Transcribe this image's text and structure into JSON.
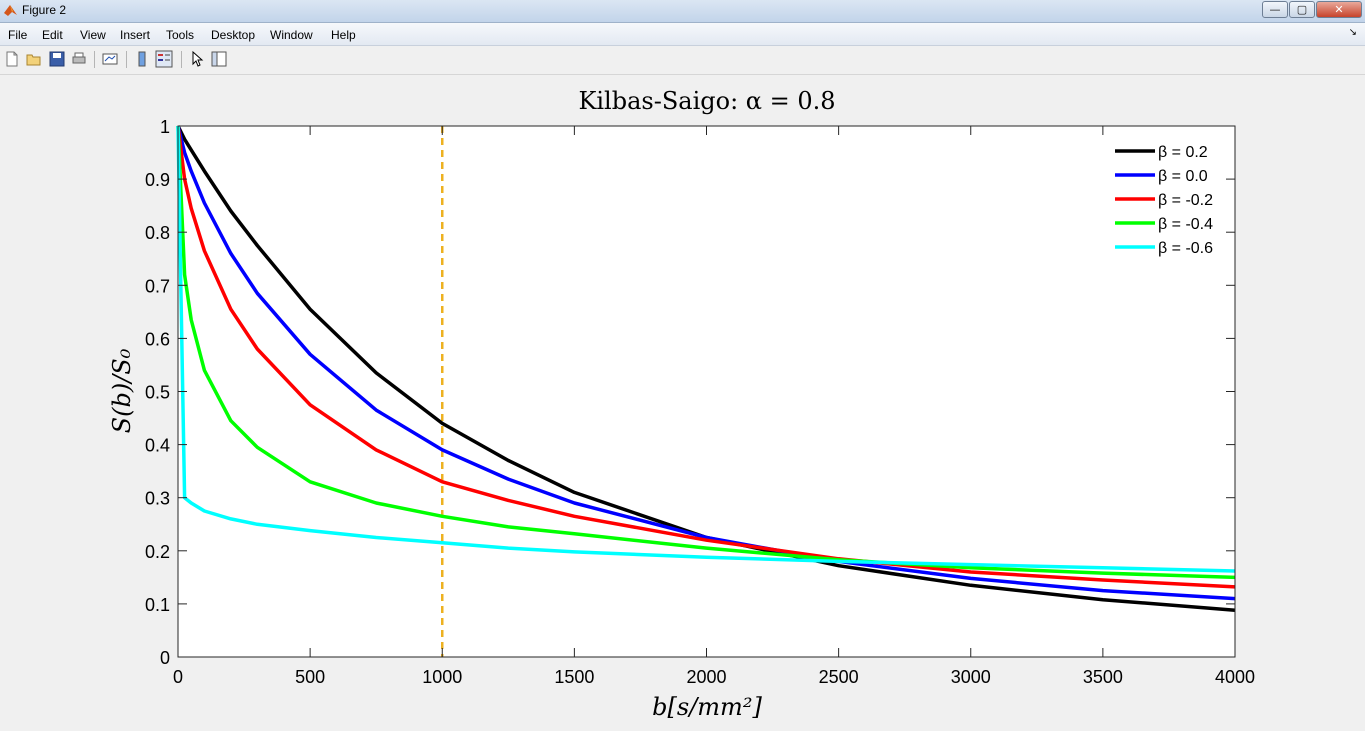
{
  "window": {
    "title": "Figure 2",
    "minimize_label": "—",
    "maximize_label": "▢",
    "close_label": "✕"
  },
  "menubar": {
    "items": [
      "File",
      "Edit",
      "View",
      "Insert",
      "Tools",
      "Desktop",
      "Window",
      "Help"
    ],
    "dock_arrow": "↘"
  },
  "toolbar": {
    "buttons": [
      "new-figure-icon",
      "open-file-icon",
      "save-icon",
      "print-icon",
      "link-plot-icon",
      "colorbar-icon",
      "legend-icon",
      "edit-plot-arrow-icon",
      "property-editor-icon"
    ]
  },
  "chart_data": {
    "type": "line",
    "title": "Kilbas-Saigo: α = 0.8",
    "xlabel": "b[s/mm²]",
    "ylabel": "S(b)/S₀",
    "xlim": [
      0,
      4000
    ],
    "ylim": [
      0,
      1
    ],
    "xticks": [
      0,
      500,
      1000,
      1500,
      2000,
      2500,
      3000,
      3500,
      4000
    ],
    "yticks": [
      0,
      0.1,
      0.2,
      0.3,
      0.4,
      0.5,
      0.6,
      0.7,
      0.8,
      0.9,
      1
    ],
    "ytick_labels": [
      "0",
      "0.1",
      "0.2",
      "0.3",
      "0.4",
      "0.5",
      "0.6",
      "0.7",
      "0.8",
      "0.9",
      "1"
    ],
    "grid": false,
    "legend_position": "top-right",
    "reference_line": {
      "x": 1000,
      "color": "#EDB120",
      "style": "dashed"
    },
    "x": [
      0,
      25,
      50,
      100,
      200,
      300,
      500,
      750,
      1000,
      1250,
      1500,
      2000,
      2500,
      3000,
      3500,
      4000
    ],
    "series": [
      {
        "name": "β = 0.2",
        "color": "#000000",
        "values": [
          1.0,
          0.975,
          0.955,
          0.915,
          0.84,
          0.775,
          0.655,
          0.535,
          0.44,
          0.37,
          0.31,
          0.225,
          0.172,
          0.135,
          0.108,
          0.088
        ]
      },
      {
        "name": "β = 0.0",
        "color": "#0000ff",
        "values": [
          1.0,
          0.95,
          0.915,
          0.855,
          0.76,
          0.685,
          0.57,
          0.465,
          0.39,
          0.335,
          0.29,
          0.225,
          0.18,
          0.148,
          0.125,
          0.11
        ]
      },
      {
        "name": "β = -0.2",
        "color": "#ff0000",
        "values": [
          1.0,
          0.9,
          0.845,
          0.765,
          0.655,
          0.58,
          0.475,
          0.39,
          0.33,
          0.295,
          0.265,
          0.22,
          0.185,
          0.16,
          0.145,
          0.132
        ]
      },
      {
        "name": "β = -0.4",
        "color": "#00ff00",
        "values": [
          1.0,
          0.72,
          0.635,
          0.54,
          0.445,
          0.395,
          0.33,
          0.29,
          0.265,
          0.245,
          0.232,
          0.205,
          0.183,
          0.168,
          0.158,
          0.15
        ]
      },
      {
        "name": "β = -0.6",
        "color": "#00ffff",
        "values": [
          1.0,
          0.3,
          0.29,
          0.275,
          0.26,
          0.25,
          0.238,
          0.225,
          0.215,
          0.205,
          0.198,
          0.188,
          0.18,
          0.174,
          0.168,
          0.162
        ]
      }
    ]
  }
}
